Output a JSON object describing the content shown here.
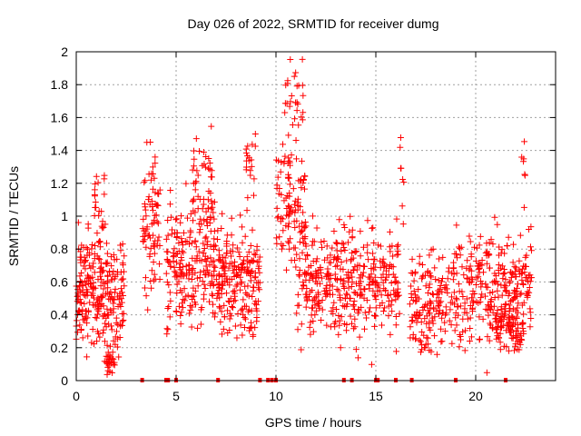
{
  "chart_data": {
    "type": "scatter",
    "title": "Day 026 of 2022, SRMTID for receiver dumg",
    "xlabel": "GPS time / hours",
    "ylabel": "SRMTID / TECUs",
    "xlim": [
      0,
      24
    ],
    "ylim": [
      0,
      2
    ],
    "grid": true,
    "marker": "+",
    "color": "#ff0000",
    "x_ticks": [
      0,
      5,
      10,
      15,
      20
    ],
    "x_tick_labels": [
      "0",
      "5",
      "10",
      "15",
      "20"
    ],
    "y_ticks": [
      0,
      0.2,
      0.4,
      0.6,
      0.8,
      1.0,
      1.2,
      1.4,
      1.6,
      1.8,
      2.0
    ],
    "y_tick_labels": [
      "0",
      "0.2",
      "0.4",
      "0.6",
      "0.8",
      "1",
      "1.2",
      "1.4",
      "1.6",
      "1.8",
      "2"
    ],
    "series": [
      {
        "name": "SRMTID",
        "clusters": [
          {
            "x_range": [
              0.0,
              2.4
            ],
            "y_center": 0.55,
            "y_spread": 0.28,
            "count": 260
          },
          {
            "x_range": [
              0.9,
              1.5
            ],
            "y_center": 1.0,
            "y_spread": 0.3,
            "count": 25
          },
          {
            "x_range": [
              1.5,
              2.0
            ],
            "y_center": 0.12,
            "y_spread": 0.1,
            "count": 30
          },
          {
            "x_range": [
              3.3,
              4.2
            ],
            "y_center": 0.95,
            "y_spread": 0.35,
            "count": 80
          },
          {
            "x_range": [
              4.5,
              7.1
            ],
            "y_center": 0.7,
            "y_spread": 0.3,
            "count": 220
          },
          {
            "x_range": [
              5.8,
              6.8
            ],
            "y_center": 1.2,
            "y_spread": 0.2,
            "count": 45
          },
          {
            "x_range": [
              7.1,
              9.2
            ],
            "y_center": 0.6,
            "y_spread": 0.25,
            "count": 200
          },
          {
            "x_range": [
              8.5,
              9.0
            ],
            "y_center": 1.3,
            "y_spread": 0.25,
            "count": 20
          },
          {
            "x_range": [
              10.0,
              11.5
            ],
            "y_center": 1.1,
            "y_spread": 0.35,
            "count": 110
          },
          {
            "x_range": [
              10.4,
              11.4
            ],
            "y_center": 1.75,
            "y_spread": 0.2,
            "count": 25
          },
          {
            "x_range": [
              11.0,
              13.5
            ],
            "y_center": 0.62,
            "y_spread": 0.28,
            "count": 190
          },
          {
            "x_range": [
              13.5,
              16.2
            ],
            "y_center": 0.6,
            "y_spread": 0.3,
            "count": 200
          },
          {
            "x_range": [
              16.2,
              16.4
            ],
            "y_center": 1.2,
            "y_spread": 0.3,
            "count": 8
          },
          {
            "x_range": [
              16.7,
              19.0
            ],
            "y_center": 0.5,
            "y_spread": 0.25,
            "count": 160
          },
          {
            "x_range": [
              19.0,
              22.8
            ],
            "y_center": 0.55,
            "y_spread": 0.28,
            "count": 300
          },
          {
            "x_range": [
              21.0,
              22.4
            ],
            "y_center": 0.3,
            "y_spread": 0.12,
            "count": 60
          },
          {
            "x_range": [
              22.3,
              22.5
            ],
            "y_center": 1.35,
            "y_spread": 0.15,
            "count": 6
          }
        ],
        "zero_points_x": [
          3.3,
          4.5,
          4.6,
          5.0,
          7.1,
          9.2,
          9.6,
          9.8,
          10.0,
          13.4,
          13.8,
          15.0,
          15.1,
          16.0,
          16.8,
          19.0,
          21.5
        ]
      }
    ]
  }
}
